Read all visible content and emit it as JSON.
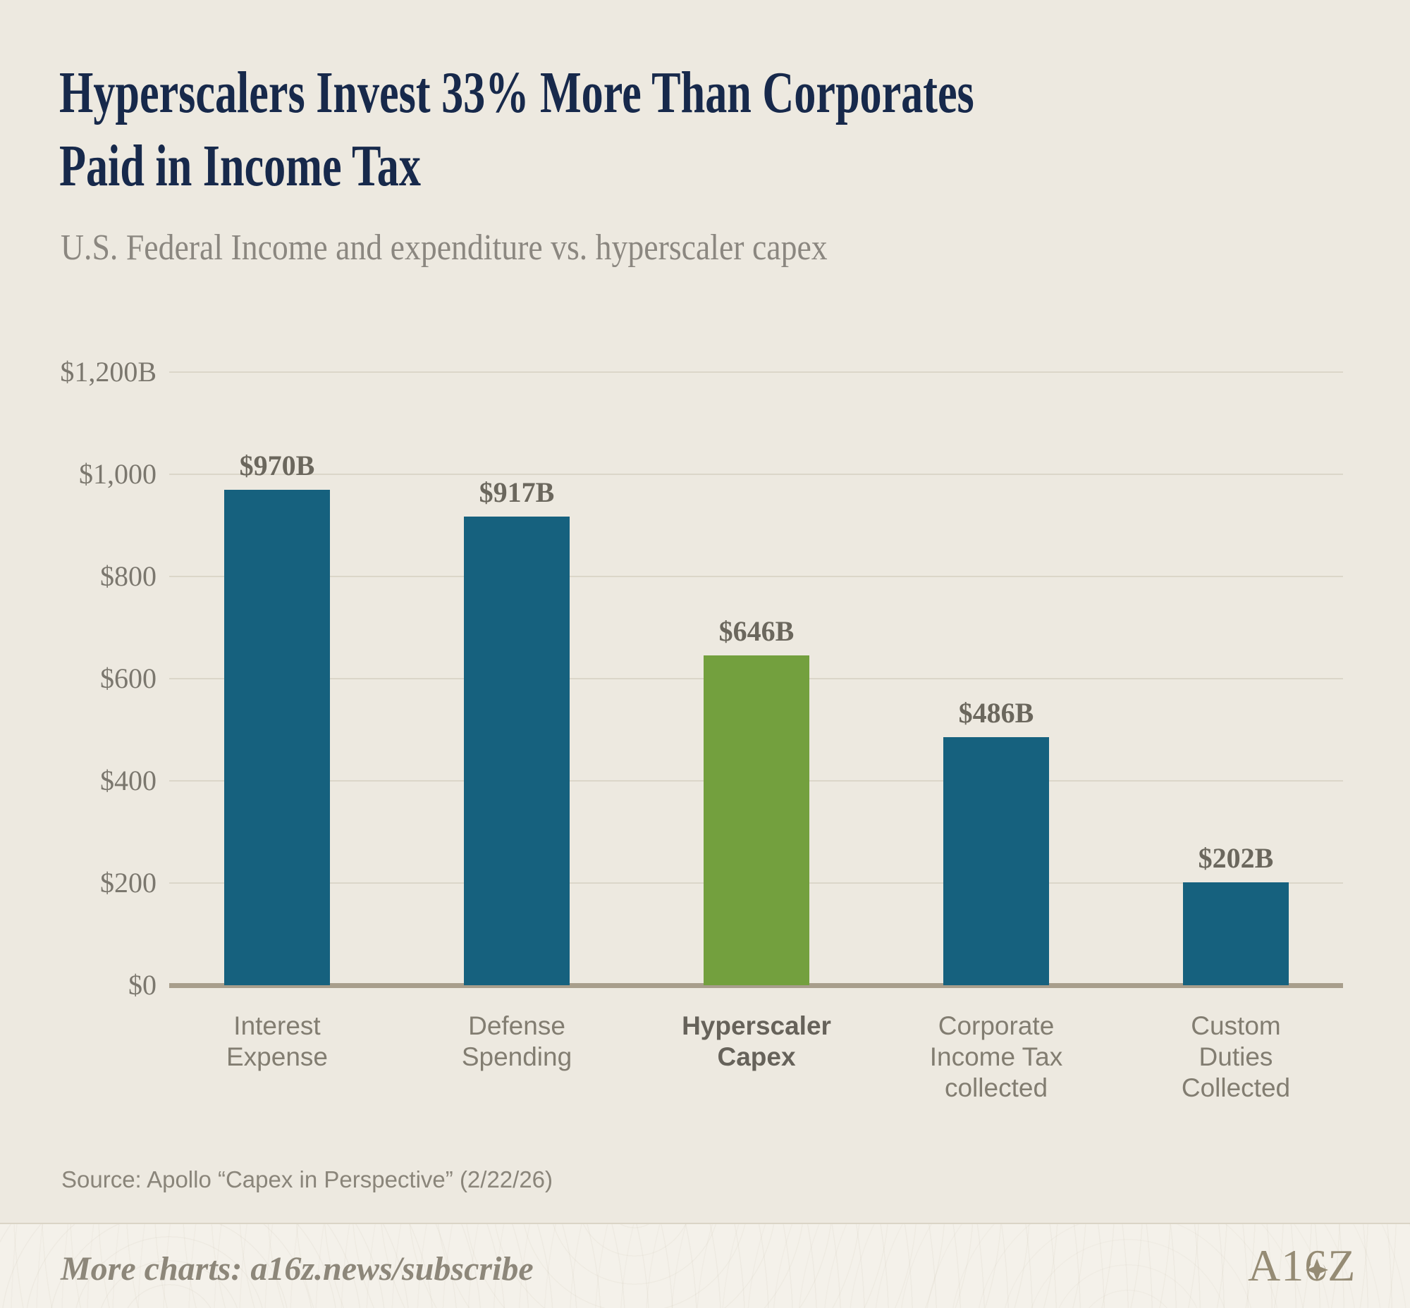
{
  "header": {
    "title_line1": "Hyperscalers Invest 33% More Than Corporates",
    "title_line2": "Paid in Income Tax",
    "subtitle": "U.S. Federal Income and expenditure vs. hyperscaler capex"
  },
  "source": "Source: Apollo “Capex in Perspective” (2/22/26)",
  "footer": {
    "more_charts": "More charts: a16z.news/subscribe",
    "logo_text": "A16Z"
  },
  "colors": {
    "background": "#EDE9E0",
    "footer_background": "#F4F1EA",
    "title": "#17294B",
    "bar_teal": "#16617E",
    "bar_green": "#73A03E",
    "gridline": "#DBD6C9",
    "baseline": "#A89E8C",
    "tick_label": "#7B776E",
    "value_label": "#6B675D",
    "category_label": "#827D71",
    "category_label_emphasis": "#66625A",
    "logo": "#958B74"
  },
  "chart_data": {
    "type": "bar",
    "title": "Hyperscalers Invest 33% More Than Corporates Paid in Income Tax",
    "subtitle": "U.S. Federal Income and expenditure vs. hyperscaler capex",
    "categories": [
      "Interest Expense",
      "Defense Spending",
      "Hyperscaler Capex",
      "Corporate Income Tax collected",
      "Custom Duties Collected"
    ],
    "category_lines": [
      [
        "Interest",
        "Expense"
      ],
      [
        "Defense",
        "Spending"
      ],
      [
        "Hyperscaler",
        "Capex"
      ],
      [
        "Corporate",
        "Income Tax",
        "collected"
      ],
      [
        "Custom",
        "Duties",
        "Collected"
      ]
    ],
    "values": [
      970,
      917,
      646,
      486,
      202
    ],
    "value_labels": [
      "$970B",
      "$917B",
      "$646B",
      "$486B",
      "$202B"
    ],
    "bar_colors": [
      "#16617E",
      "#16617E",
      "#73A03E",
      "#16617E",
      "#16617E"
    ],
    "emphasized_index": 2,
    "xlabel": "",
    "ylabel": "",
    "ylim": [
      0,
      1200
    ],
    "yticks": [
      {
        "value": 1200,
        "label": "$1,200B"
      },
      {
        "value": 1000,
        "label": "$1,000"
      },
      {
        "value": 800,
        "label": "$800"
      },
      {
        "value": 600,
        "label": "$600"
      },
      {
        "value": 400,
        "label": "$400"
      },
      {
        "value": 200,
        "label": "$200"
      },
      {
        "value": 0,
        "label": "$0"
      }
    ],
    "grid": true,
    "legend": false
  }
}
